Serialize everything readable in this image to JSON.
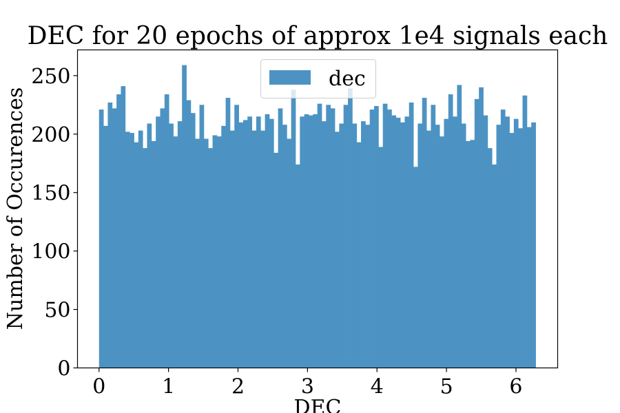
{
  "chart_data": {
    "type": "bar",
    "title": "DEC for 20 epochs of approx 1e4 signals each",
    "xlabel": "DEC",
    "ylabel": "Number of Occurences",
    "xlim": [
      -0.31,
      6.6
    ],
    "ylim": [
      0,
      272
    ],
    "x_ticks": [
      0,
      1,
      2,
      3,
      4,
      5,
      6
    ],
    "y_ticks": [
      0,
      50,
      100,
      150,
      200,
      250
    ],
    "bin_start": 0,
    "bin_end": 6.2832,
    "legend_position": "upper center",
    "grid": false,
    "color": "#4c93c3",
    "series": [
      {
        "name": "dec",
        "values": [
          221,
          207,
          227,
          222,
          234,
          241,
          202,
          201,
          193,
          203,
          188,
          209,
          194,
          215,
          222,
          234,
          209,
          198,
          211,
          259,
          229,
          218,
          196,
          225,
          196,
          188,
          199,
          198,
          207,
          231,
          203,
          225,
          210,
          212,
          215,
          203,
          215,
          203,
          217,
          213,
          184,
          222,
          208,
          196,
          238,
          174,
          215,
          217,
          216,
          217,
          226,
          211,
          225,
          222,
          202,
          209,
          225,
          239,
          209,
          193,
          211,
          208,
          221,
          224,
          189,
          226,
          221,
          216,
          214,
          210,
          215,
          227,
          172,
          209,
          231,
          203,
          225,
          208,
          198,
          213,
          234,
          215,
          242,
          209,
          194,
          195,
          230,
          240,
          216,
          188,
          174,
          208,
          221,
          215,
          201,
          213,
          205,
          233,
          206,
          210
        ]
      }
    ]
  }
}
